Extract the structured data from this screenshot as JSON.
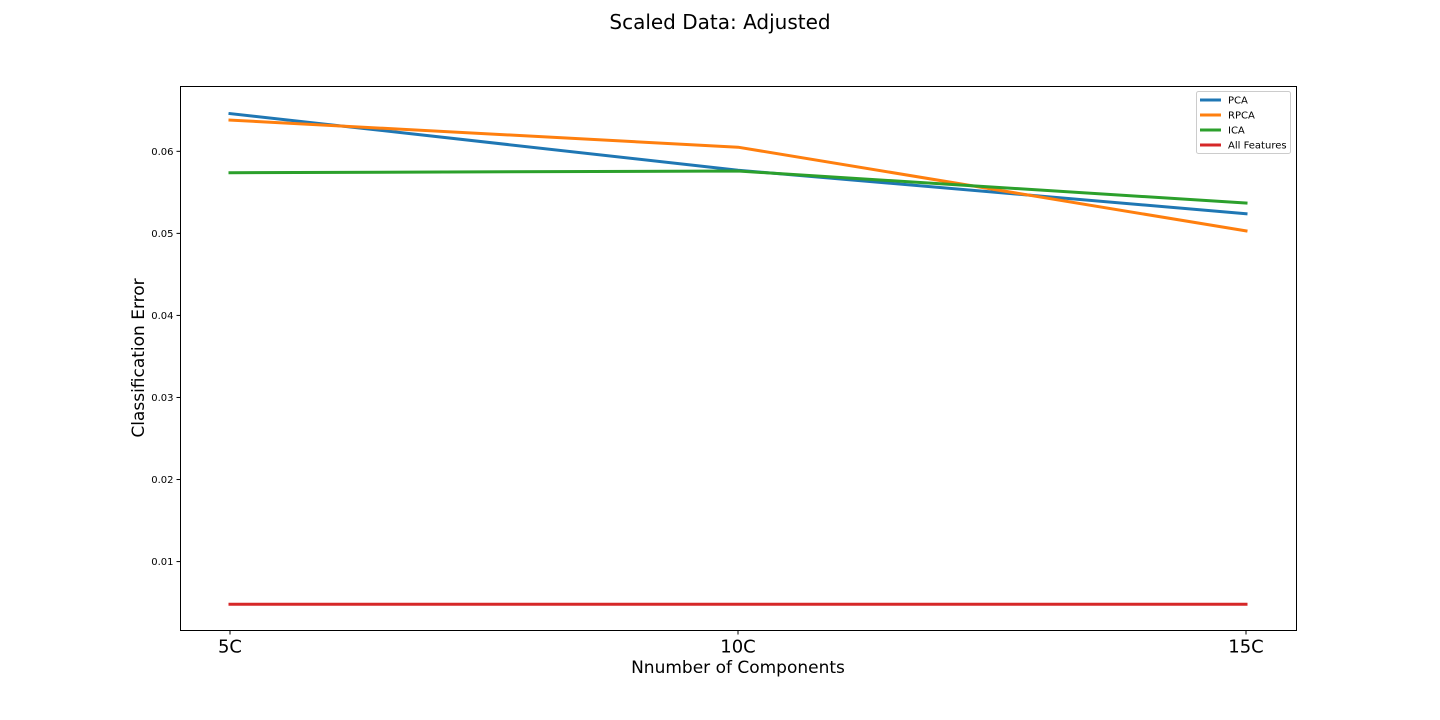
{
  "chart_data": {
    "type": "line",
    "title": "Scaled Data: Adjusted",
    "xlabel": "Nnumber of Components",
    "ylabel": "Classification Error",
    "categories": [
      "5C",
      "10C",
      "15C"
    ],
    "yticks": [
      "0.01",
      "0.02",
      "0.03",
      "0.04",
      "0.05",
      "0.06"
    ],
    "ylim": [
      0.0016,
      0.0679
    ],
    "grid": false,
    "legend_position": "top-right",
    "series": [
      {
        "name": "PCA",
        "color": "#1f77b4",
        "values": [
          0.0646,
          0.0577,
          0.0524
        ]
      },
      {
        "name": "RPCA",
        "color": "#ff7f0e",
        "values": [
          0.0638,
          0.0605,
          0.0503
        ]
      },
      {
        "name": "ICA",
        "color": "#2ca02c",
        "values": [
          0.0574,
          0.0576,
          0.0537
        ]
      },
      {
        "name": "All Features",
        "color": "#d62728",
        "values": [
          0.0048,
          0.0048,
          0.0048
        ]
      }
    ]
  }
}
